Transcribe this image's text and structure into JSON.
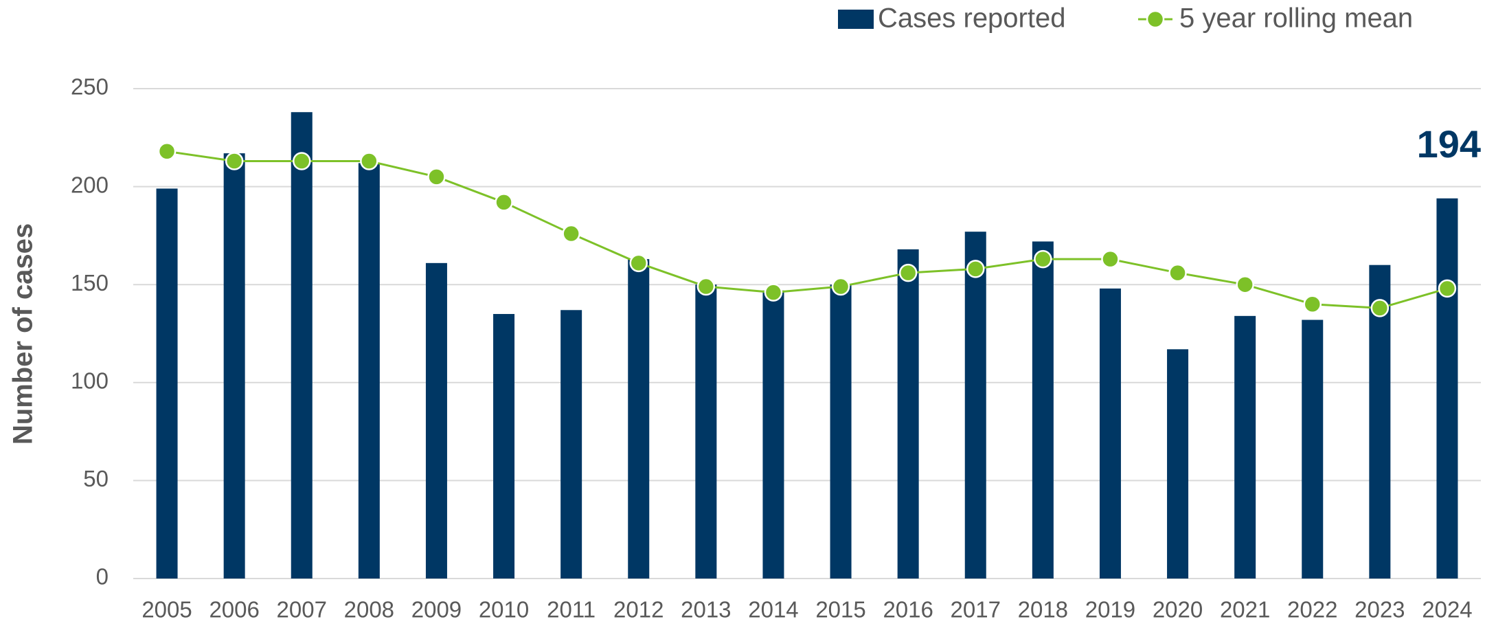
{
  "chart_data": {
    "type": "bar",
    "y_label": "Number of cases",
    "categories": [
      "2005",
      "2006",
      "2007",
      "2008",
      "2009",
      "2010",
      "2011",
      "2012",
      "2013",
      "2014",
      "2015",
      "2016",
      "2017",
      "2018",
      "2019",
      "2020",
      "2021",
      "2022",
      "2023",
      "2024"
    ],
    "series": [
      {
        "name": "Cases reported",
        "type": "bar",
        "color": "#003764",
        "values": [
          199,
          217,
          238,
          212,
          161,
          135,
          137,
          163,
          150,
          147,
          150,
          168,
          177,
          172,
          148,
          117,
          134,
          132,
          160,
          194
        ]
      },
      {
        "name": "5 year rolling mean",
        "type": "line",
        "color": "#7dc128",
        "values": [
          218,
          213,
          213,
          213,
          205,
          192,
          176,
          161,
          149,
          146,
          149,
          156,
          158,
          163,
          163,
          156,
          150,
          140,
          138,
          148
        ]
      }
    ],
    "data_labels": "last",
    "ylim": [
      0,
      250
    ],
    "yticks": [
      0,
      50,
      100,
      150,
      200,
      250
    ],
    "grid": true,
    "legend": "top-right"
  }
}
